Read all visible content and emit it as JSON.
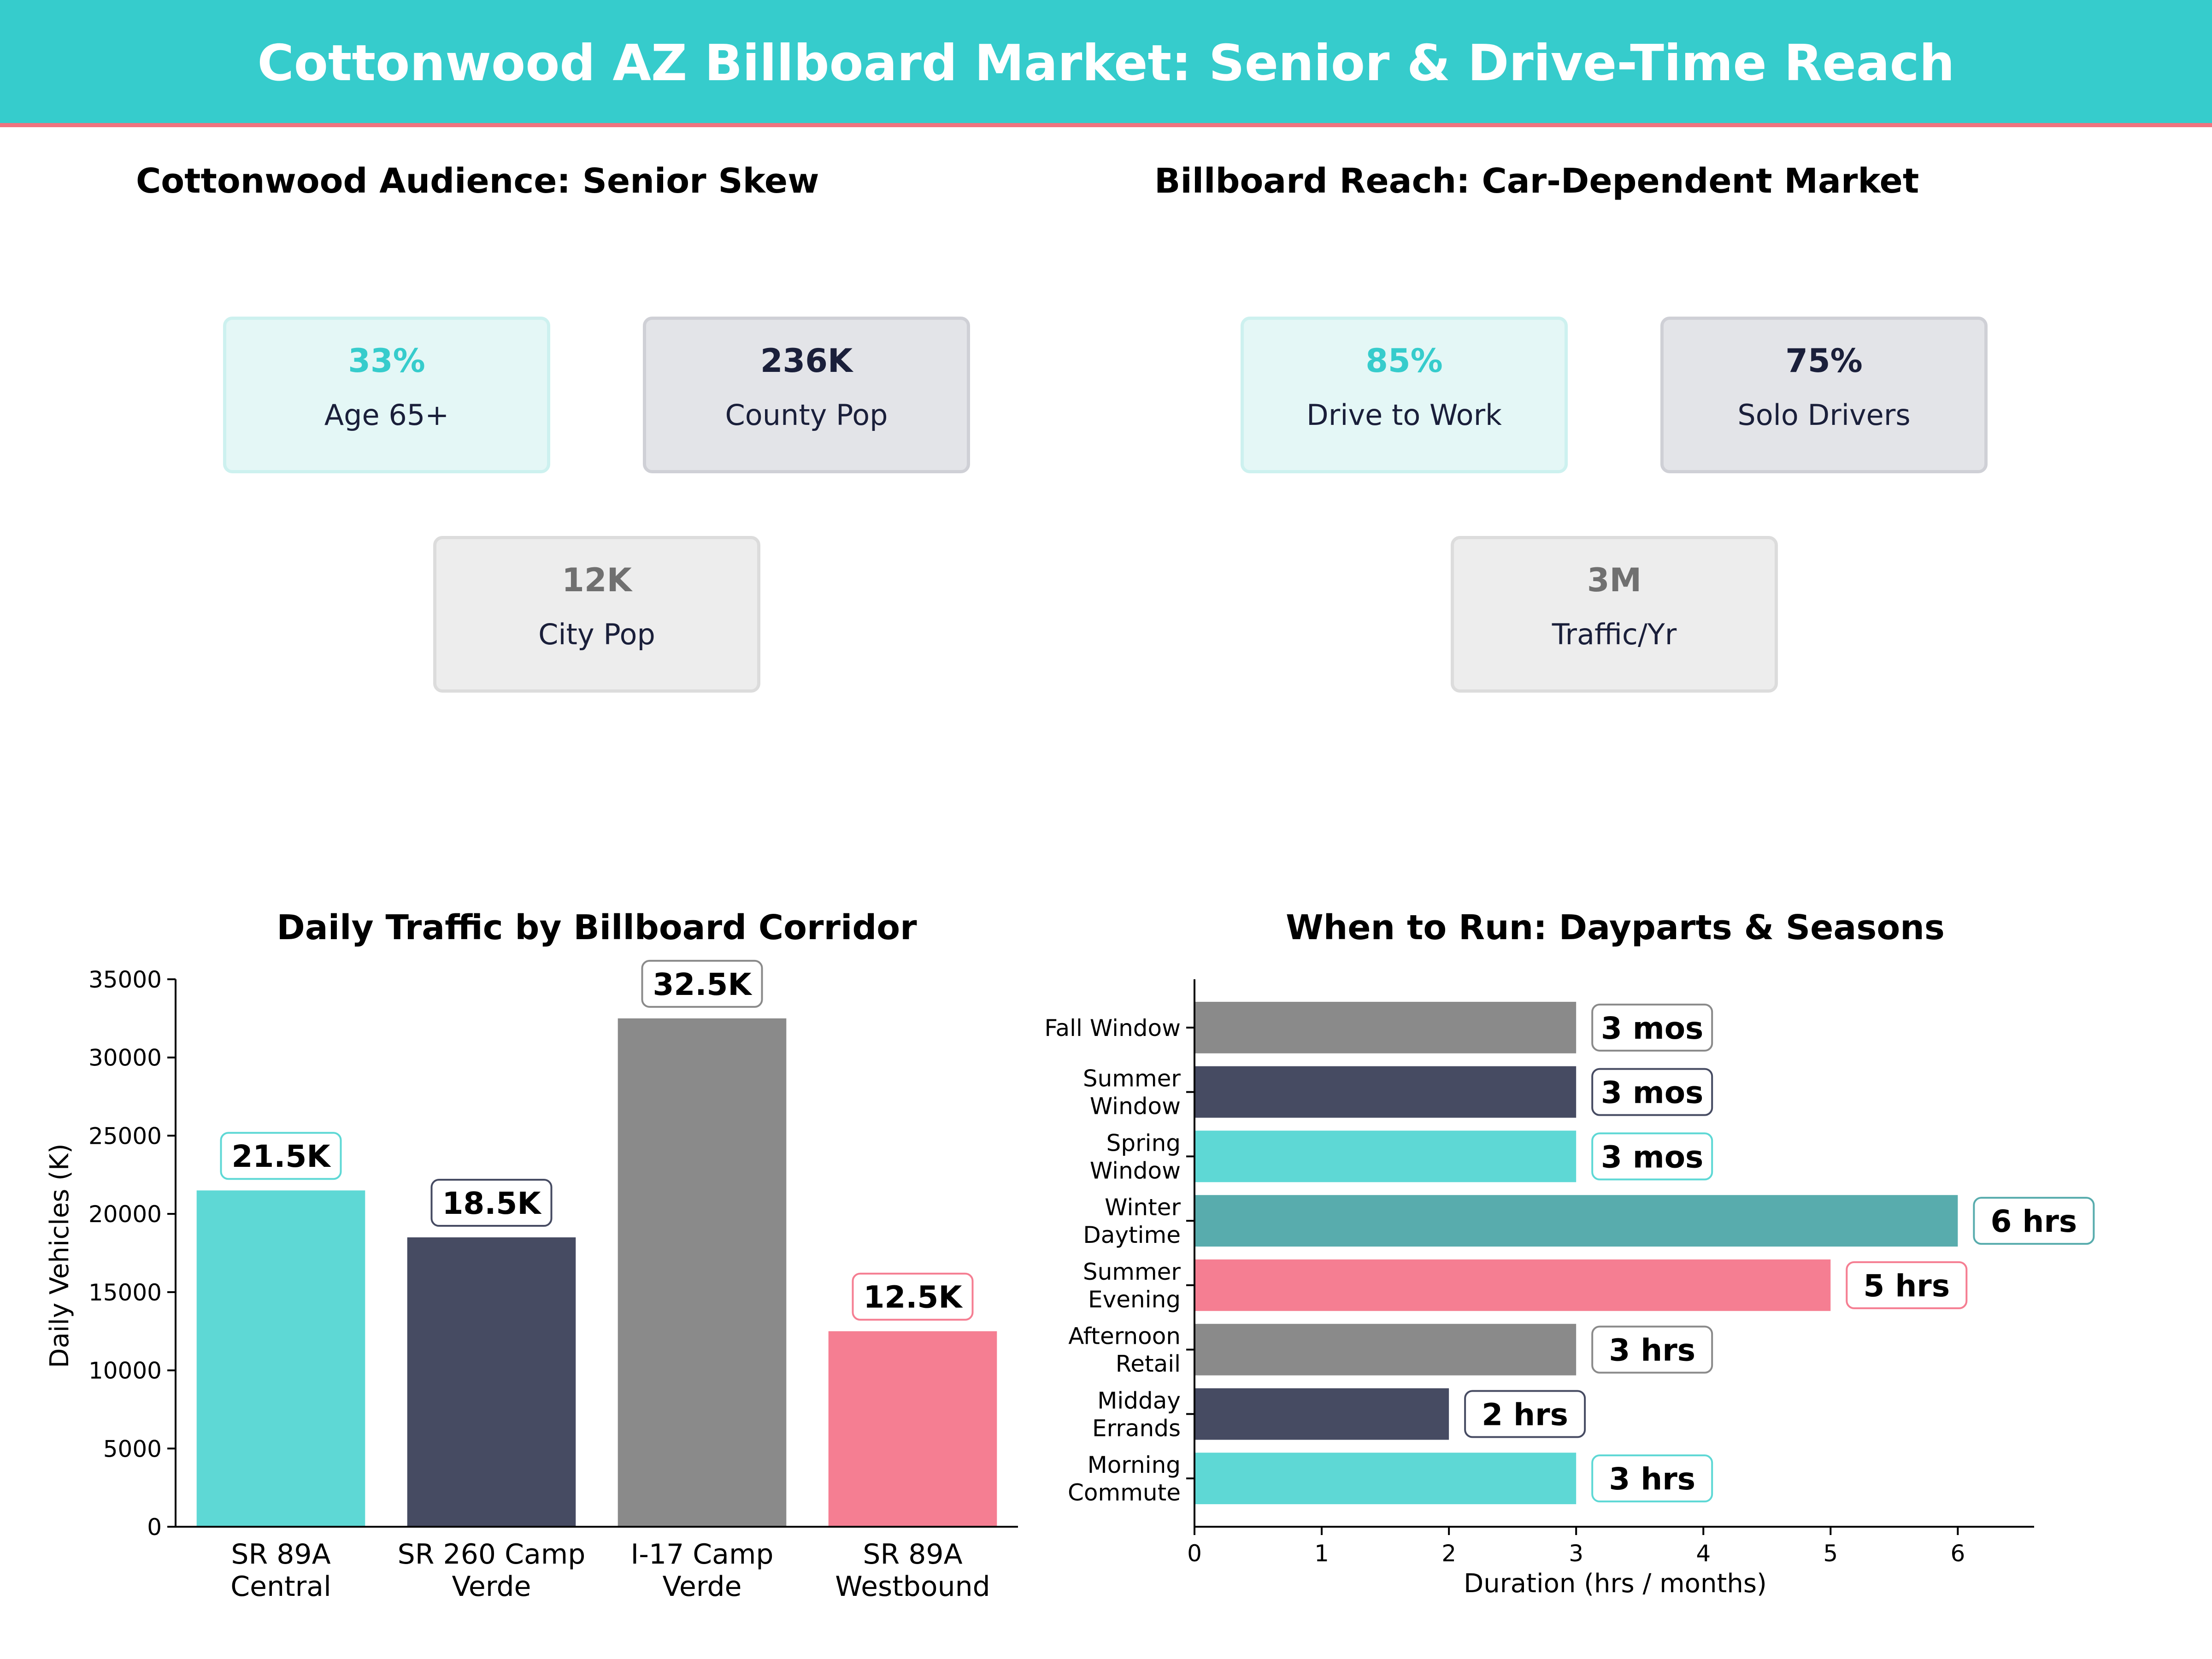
{
  "header": {
    "title": "Cottonwood AZ Billboard Market: Senior & Drive-Time Reach"
  },
  "colors": {
    "teal": "#5ed8d5",
    "navy": "#464b62",
    "gray": "#8a8a8a",
    "pink": "#f57e92",
    "dark_teal": "#58acad",
    "header_bg": "#36cccc",
    "header_border": "#f0737f"
  },
  "audience": {
    "title": "Cottonwood Audience: Senior Skew",
    "cards": [
      {
        "value": "33%",
        "label": "Age 65+"
      },
      {
        "value": "236K",
        "label": "County Pop"
      },
      {
        "value": "12K",
        "label": "City Pop"
      }
    ]
  },
  "reach": {
    "title": "Billboard Reach: Car-Dependent Market",
    "cards": [
      {
        "value": "85%",
        "label": "Drive to Work"
      },
      {
        "value": "75%",
        "label": "Solo Drivers"
      },
      {
        "value": "3M",
        "label": "Traffic/Yr"
      }
    ]
  },
  "chart_data": [
    {
      "type": "bar",
      "title": "Daily Traffic by Billboard Corridor",
      "xlabel": "",
      "ylabel": "Daily Vehicles (K)",
      "categories": [
        "SR 89A\nCentral",
        "SR 260 Camp\nVerde",
        "I-17 Camp\nVerde",
        "SR 89A\nWestbound"
      ],
      "values": [
        21500,
        18500,
        32500,
        12500
      ],
      "data_labels": [
        "21.5K",
        "18.5K",
        "32.5K",
        "12.5K"
      ],
      "bar_colors": [
        "#5ed8d5",
        "#464b62",
        "#8a8a8a",
        "#f57e92"
      ],
      "ylim": [
        0,
        35000
      ],
      "yticks": [
        0,
        5000,
        10000,
        15000,
        20000,
        25000,
        30000,
        35000
      ],
      "grid": false
    },
    {
      "type": "bar",
      "orientation": "horizontal",
      "title": "When to Run: Dayparts & Seasons",
      "xlabel": "Duration (hrs / months)",
      "ylabel": "",
      "categories": [
        "Morning\nCommute",
        "Midday\nErrands",
        "Afternoon\nRetail",
        "Summer\nEvening",
        "Winter\nDaytime",
        "Spring\nWindow",
        "Summer\nWindow",
        "Fall Window"
      ],
      "values": [
        3,
        2,
        3,
        5,
        6,
        3,
        3,
        3
      ],
      "data_labels": [
        "3 hrs",
        "2 hrs",
        "3 hrs",
        "5 hrs",
        "6 hrs",
        "3 mos",
        "3 mos",
        "3 mos"
      ],
      "bar_colors": [
        "#5ed8d5",
        "#464b62",
        "#8a8a8a",
        "#f57e92",
        "#58acad",
        "#5ed8d5",
        "#464b62",
        "#8a8a8a"
      ],
      "xlim": [
        0,
        6.6
      ],
      "xticks": [
        0,
        1,
        2,
        3,
        4,
        5,
        6
      ],
      "grid": false
    }
  ]
}
